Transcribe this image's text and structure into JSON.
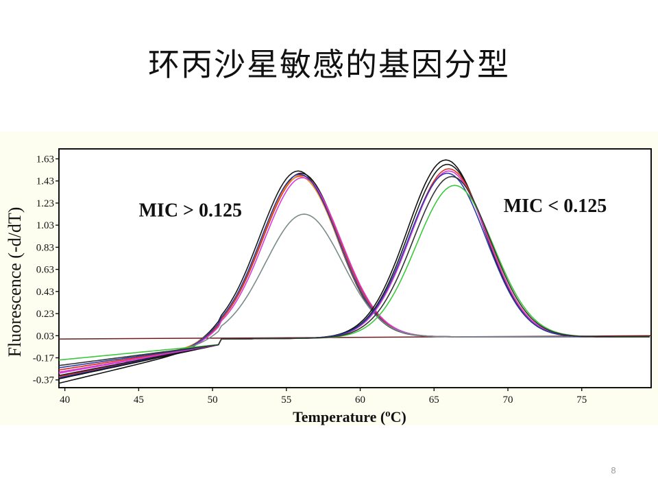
{
  "slide": {
    "title": "环丙沙星敏感的基因分型",
    "page_number": "8"
  },
  "chart_data": {
    "type": "line",
    "xlabel_main": "Temperature (",
    "xlabel_sup": "o",
    "xlabel_end": "C)",
    "ylabel": "Fluorescence (-d/dT)",
    "xlim": [
      39.6,
      79.7
    ],
    "ylim": [
      -0.44,
      1.72
    ],
    "xticks": [
      40,
      45,
      50,
      55,
      60,
      65,
      70,
      75
    ],
    "yticks": [
      1.63,
      1.43,
      1.23,
      1.03,
      0.83,
      0.63,
      0.43,
      0.23,
      0.03,
      -0.17,
      -0.37
    ],
    "ytick_labels": [
      "1.63",
      "1.43",
      "1.23",
      "1.03",
      "0.83",
      "0.63",
      "0.43",
      "0.23",
      "0.03",
      "-0.17",
      "-0.37"
    ],
    "annotations": [
      {
        "text": "MIC > 0.125",
        "x": 48.5,
        "y": 1.11
      },
      {
        "text": "MIC < 0.125",
        "x": 73.2,
        "y": 1.15
      }
    ],
    "baseline": {
      "name": "",
      "color": "#6b1a1a",
      "x": [
        39.6,
        79.7
      ],
      "y": [
        0.0,
        0.03
      ]
    },
    "series": [
      {
        "group": "MIC > 0.125",
        "color": "#111111",
        "peak_x": 56.0,
        "peak_y": 1.48,
        "low_y": -0.4
      },
      {
        "group": "MIC > 0.125",
        "color": "#1a1a1a",
        "peak_x": 55.8,
        "peak_y": 1.5,
        "low_y": -0.36
      },
      {
        "group": "MIC > 0.125",
        "color": "#e0301e",
        "peak_x": 56.0,
        "peak_y": 1.46,
        "low_y": -0.34
      },
      {
        "group": "MIC > 0.125",
        "color": "#f08a1a",
        "peak_x": 55.9,
        "peak_y": 1.45,
        "low_y": -0.3
      },
      {
        "group": "MIC > 0.125",
        "color": "#d83ad8",
        "peak_x": 56.1,
        "peak_y": 1.44,
        "low_y": -0.31
      },
      {
        "group": "MIC > 0.125",
        "color": "#2b3aa8",
        "peak_x": 55.9,
        "peak_y": 1.47,
        "low_y": -0.35
      },
      {
        "group": "MIC > 0.125",
        "color": "#7a8a8a",
        "peak_x": 56.2,
        "peak_y": 1.11,
        "low_y": -0.28
      },
      {
        "group": "MIC < 0.125",
        "color": "#111111",
        "peak_x": 65.8,
        "peak_y": 1.6,
        "low_y": -0.36
      },
      {
        "group": "MIC < 0.125",
        "color": "#1a1a1a",
        "peak_x": 65.9,
        "peak_y": 1.56,
        "low_y": -0.33
      },
      {
        "group": "MIC < 0.125",
        "color": "#e0301e",
        "peak_x": 66.0,
        "peak_y": 1.52,
        "low_y": -0.28
      },
      {
        "group": "MIC < 0.125",
        "color": "#d83ad8",
        "peak_x": 66.0,
        "peak_y": 1.5,
        "low_y": -0.3
      },
      {
        "group": "MIC < 0.125",
        "color": "#2b3aa8",
        "peak_x": 65.9,
        "peak_y": 1.48,
        "low_y": -0.26
      },
      {
        "group": "MIC < 0.125",
        "color": "#3ac83a",
        "peak_x": 66.4,
        "peak_y": 1.37,
        "low_y": -0.19
      },
      {
        "group": "MIC < 0.125",
        "color": "#333333",
        "peak_x": 66.2,
        "peak_y": 1.45,
        "low_y": -0.24
      }
    ]
  }
}
